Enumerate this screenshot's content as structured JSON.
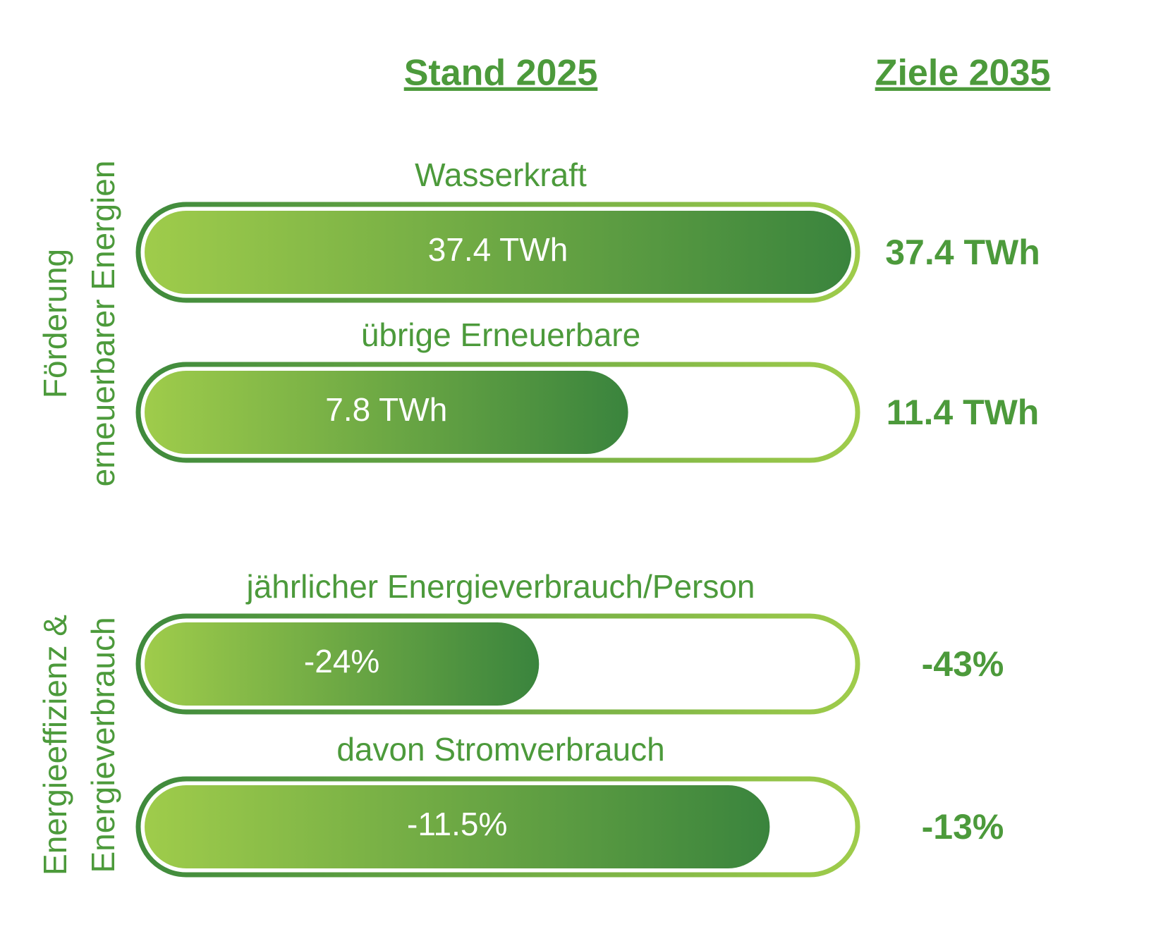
{
  "header": {
    "current": "Stand 2025",
    "target": "Ziele 2035"
  },
  "groups": [
    {
      "title_lines": [
        "Förderung",
        "erneuerbarer Energien"
      ],
      "items": [
        {
          "label": "Wasserkraft",
          "current": 37.4,
          "current_label": "37.4 TWh",
          "target": 37.4,
          "target_label": "37.4 TWh"
        },
        {
          "label": "übrige Erneuerbare",
          "current": 7.8,
          "current_label": "7.8 TWh",
          "target": 11.4,
          "target_label": "11.4 TWh"
        }
      ]
    },
    {
      "title_lines": [
        "Energieeffizienz &",
        "Energieverbrauch"
      ],
      "items": [
        {
          "label": "jährlicher Energieverbrauch/Person",
          "current": -24,
          "current_label": "-24%",
          "target": -43,
          "target_label": "-43%"
        },
        {
          "label": "davon Stromverbrauch",
          "current": -11.5,
          "current_label": "-11.5%",
          "target": -13,
          "target_label": "-13%"
        }
      ]
    }
  ]
}
